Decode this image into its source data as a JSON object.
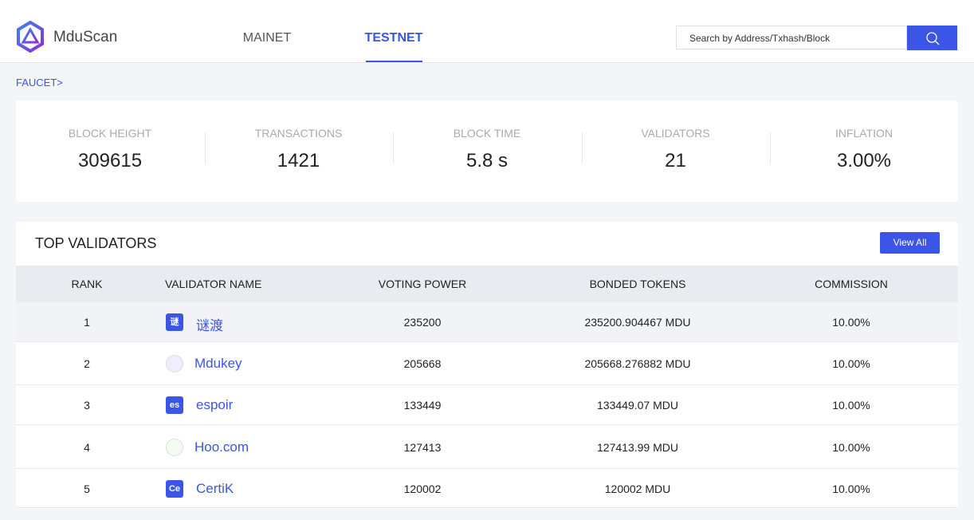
{
  "header": {
    "brand": "MduScan",
    "nav": [
      "MAINET",
      "TESTNET"
    ],
    "search_placeholder": "Search by Address/Txhash/Block"
  },
  "breadcrumb": "FAUCET>",
  "stats": [
    {
      "label": "BLOCK HEIGHT",
      "value": "309615"
    },
    {
      "label": "TRANSACTIONS",
      "value": "1421"
    },
    {
      "label": "BLOCK TIME",
      "value": "5.8 s"
    },
    {
      "label": "VALIDATORS",
      "value": "21"
    },
    {
      "label": "INFLATION",
      "value": "3.00%"
    }
  ],
  "validators": {
    "title": "TOP VALIDATORS",
    "view_all": "View All",
    "columns": [
      "RANK",
      "VALIDATOR NAME",
      "VOTING POWER",
      "BONDED TOKENS",
      "COMMISSION"
    ],
    "rows": [
      {
        "rank": "1",
        "icon": "谜",
        "name": "谜渡",
        "voting_power": "235200",
        "bonded": "235200.904467 MDU",
        "commission": "10.00%"
      },
      {
        "rank": "2",
        "name": "Mdukey",
        "voting_power": "205668",
        "bonded": "205668.276882 MDU",
        "commission": "10.00%"
      },
      {
        "rank": "3",
        "icon": "es",
        "name": "espoir",
        "voting_power": "133449",
        "bonded": "133449.07 MDU",
        "commission": "10.00%"
      },
      {
        "rank": "4",
        "name": "Hoo.com",
        "voting_power": "127413",
        "bonded": "127413.99 MDU",
        "commission": "10.00%"
      },
      {
        "rank": "5",
        "icon": "Ce",
        "name": "CertiK",
        "voting_power": "120002",
        "bonded": "120002 MDU",
        "commission": "10.00%"
      }
    ]
  }
}
